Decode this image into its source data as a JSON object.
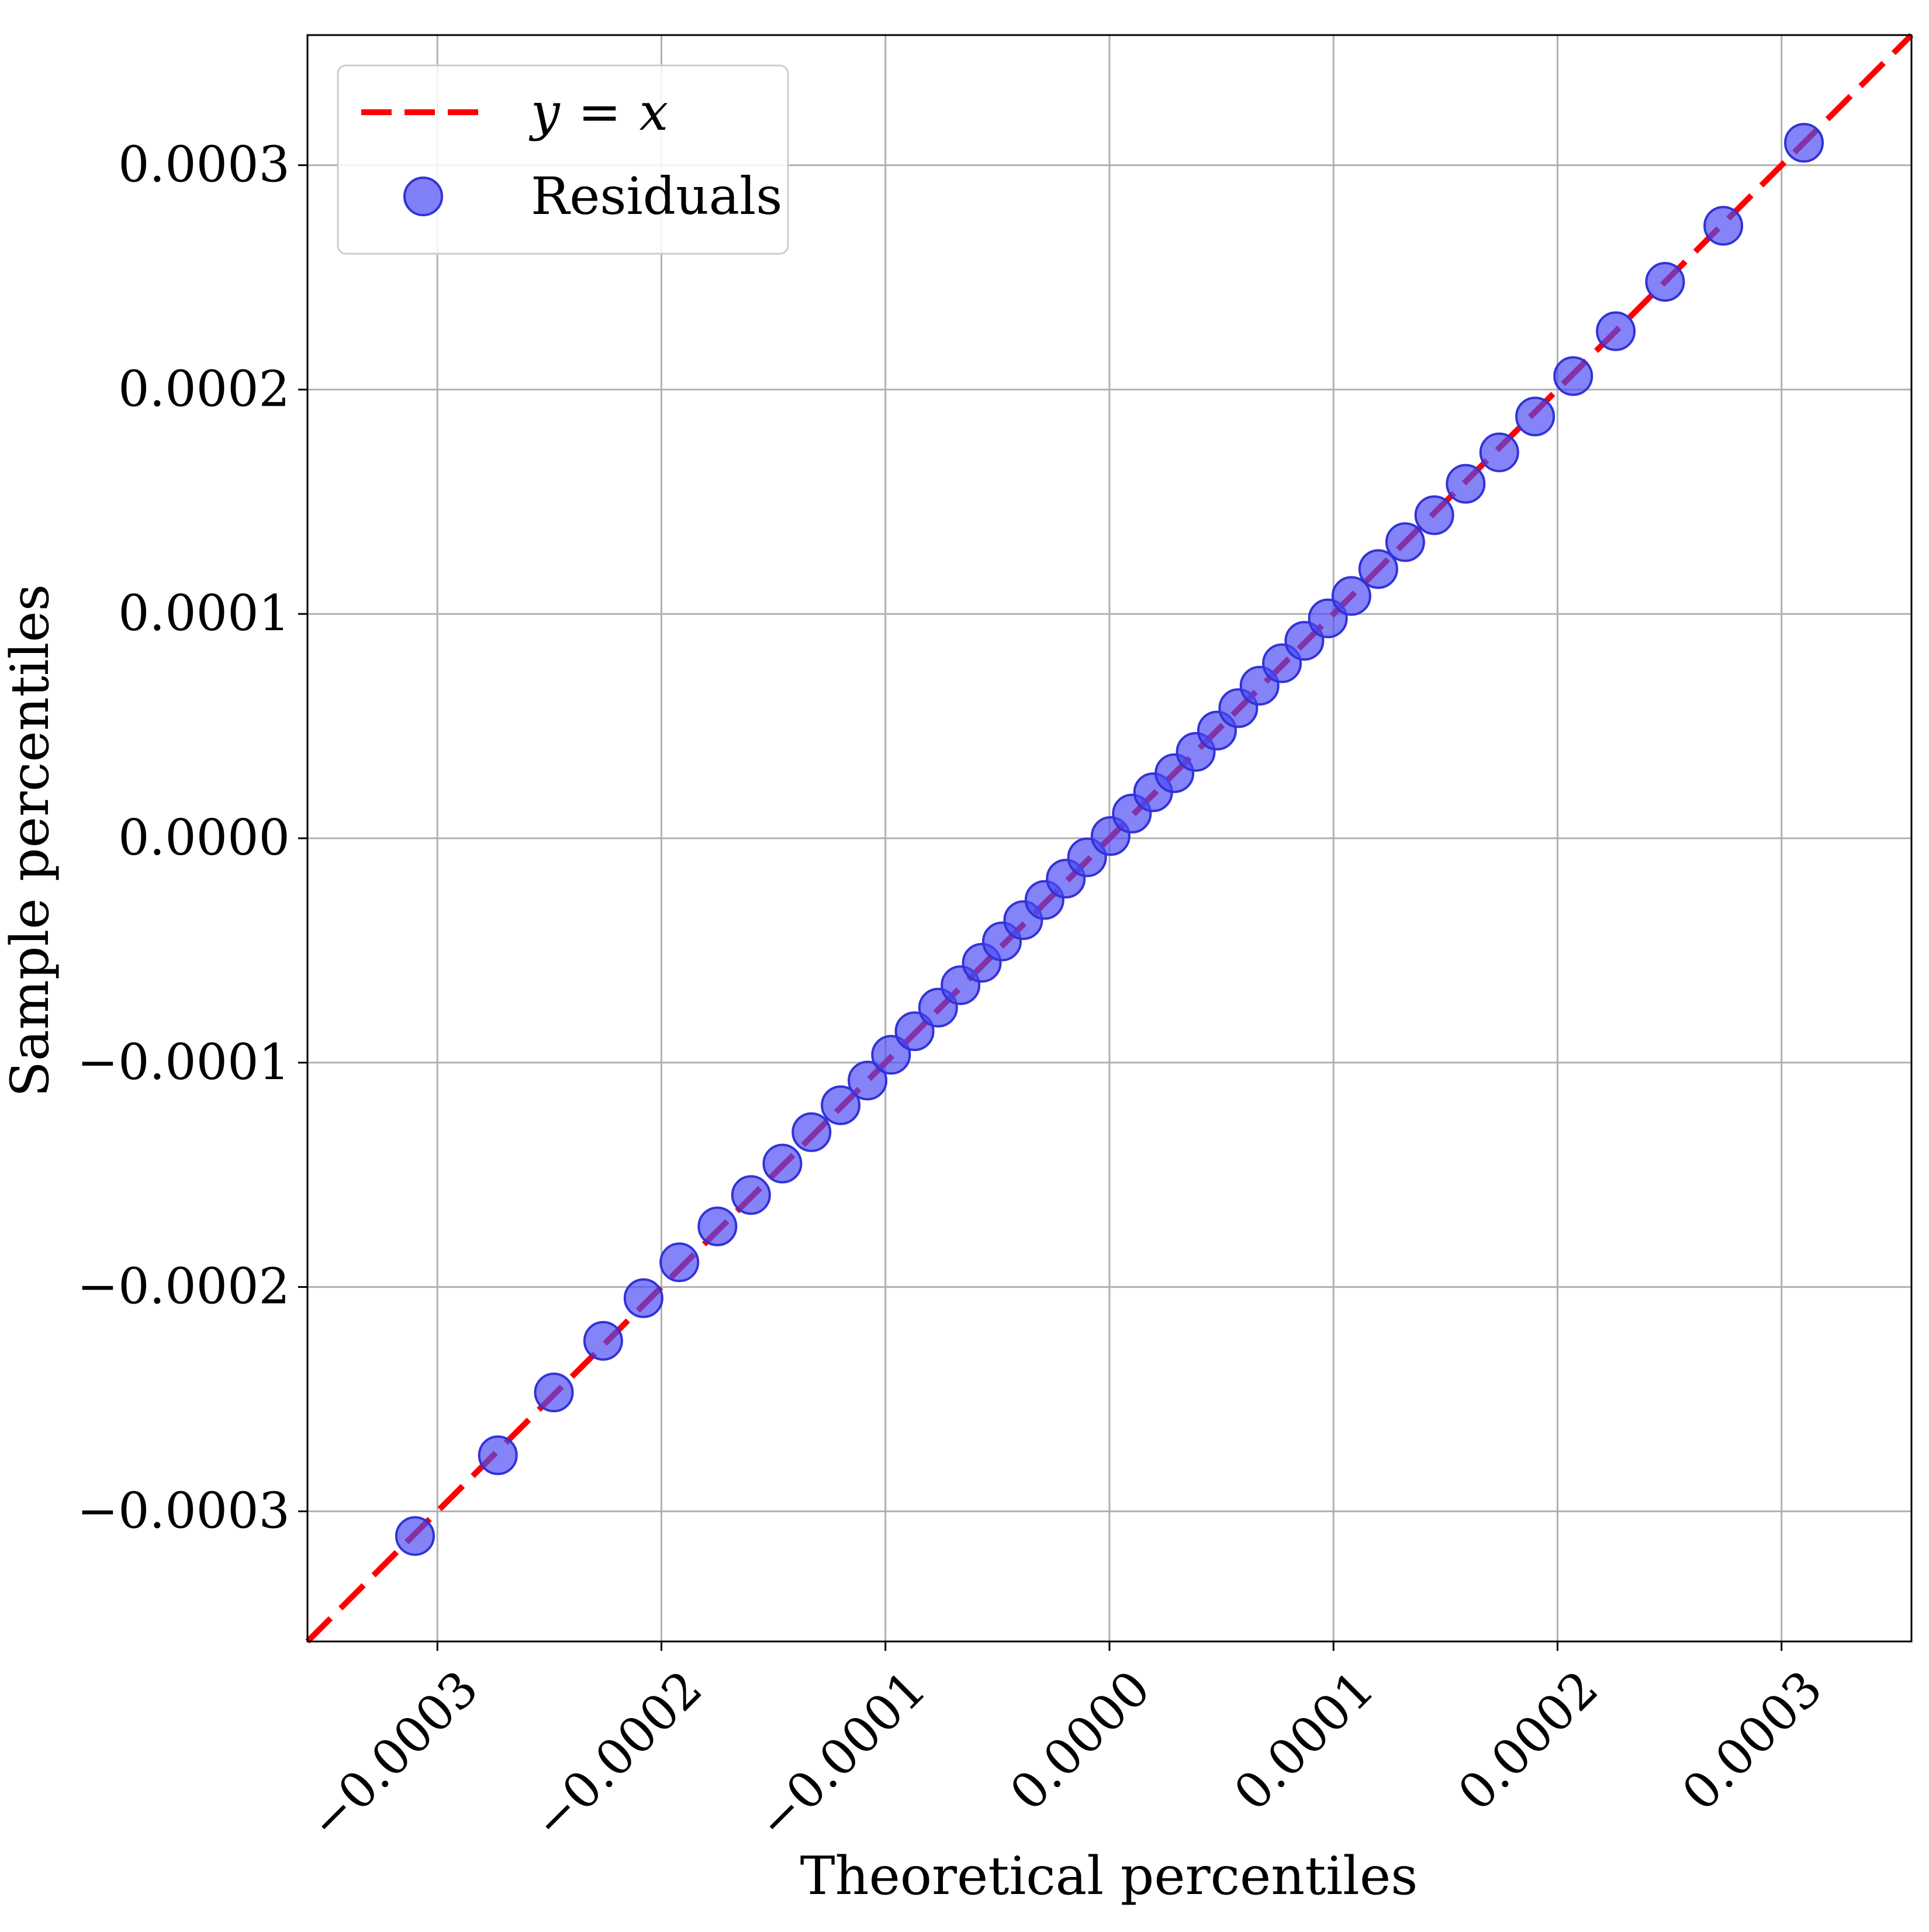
{
  "chart_data": {
    "type": "scatter",
    "title": "",
    "xlabel": "Theoretical percentiles",
    "ylabel": "Sample percentiles",
    "xlim": [
      -0.000358,
      0.000358
    ],
    "ylim": [
      -0.000358,
      0.000358
    ],
    "grid": true,
    "legend_position": "top-left",
    "x_ticks": [
      -0.0003,
      -0.0002,
      -0.0001,
      0.0,
      0.0001,
      0.0002,
      0.0003
    ],
    "x_tick_labels": [
      "−0.0003",
      "−0.0002",
      "−0.0001",
      "0.0000",
      "0.0001",
      "0.0002",
      "0.0003"
    ],
    "y_ticks": [
      -0.0003,
      -0.0002,
      -0.0001,
      0.0,
      0.0001,
      0.0002,
      0.0003
    ],
    "y_tick_labels": [
      "−0.0003",
      "−0.0002",
      "−0.0001",
      "0.0000",
      "0.0001",
      "0.0002",
      "0.0003"
    ],
    "reference_line": {
      "name": "y = x",
      "legend_lhs": "y",
      "legend_op": "=",
      "legend_rhs": "x",
      "color": "#ff0000",
      "style": "dashed"
    },
    "series": [
      {
        "name": "Residuals",
        "color": "#4a4af5",
        "x": [
          -0.00031,
          -0.000273,
          -0.000248,
          -0.000226,
          -0.000208,
          -0.000192,
          -0.000175,
          -0.00016,
          -0.000146,
          -0.000133,
          -0.00012,
          -0.000108,
          -9.75e-05,
          -8.7e-05,
          -7.65e-05,
          -6.65e-05,
          -5.7e-05,
          -4.8e-05,
          -3.85e-05,
          -2.9e-05,
          -1.95e-05,
          -1e-05,
          5e-07,
          1e-05,
          1.95e-05,
          2.9e-05,
          3.85e-05,
          4.8e-05,
          5.75e-05,
          6.7e-05,
          7.7e-05,
          8.7e-05,
          9.75e-05,
          0.000108,
          0.00012,
          0.000132,
          0.000145,
          0.000159,
          0.000174,
          0.00019,
          0.000207,
          0.000226,
          0.000248,
          0.000274,
          0.00031
        ],
        "y": [
          -0.000311,
          -0.000275,
          -0.000247,
          -0.000224,
          -0.000205,
          -0.000189,
          -0.000173,
          -0.000159,
          -0.000145,
          -0.000131,
          -0.000119,
          -0.000108,
          -9.65e-05,
          -8.6e-05,
          -7.55e-05,
          -6.55e-05,
          -5.55e-05,
          -4.6e-05,
          -3.65e-05,
          -2.75e-05,
          -1.8e-05,
          -8.5e-06,
          1e-06,
          1.1e-05,
          2.05e-05,
          2.9e-05,
          3.85e-05,
          4.8e-05,
          5.8e-05,
          6.8e-05,
          7.8e-05,
          8.8e-05,
          9.8e-05,
          0.000108,
          0.00012,
          0.000132,
          0.000144,
          0.000158,
          0.000172,
          0.000188,
          0.000206,
          0.000226,
          0.000248,
          0.000273,
          0.00031
        ]
      }
    ]
  }
}
